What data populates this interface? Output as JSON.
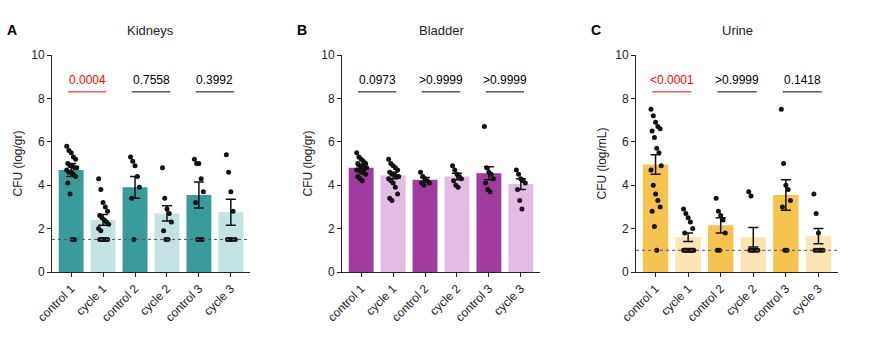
{
  "chart_data": [
    {
      "type": "bar",
      "panel": "A",
      "title": "Kidneys",
      "y_label": "CFU (log/gr)",
      "categories": [
        "control 1",
        "cycle 1",
        "control 2",
        "cycle 2",
        "control 3",
        "cycle 3"
      ],
      "values": [
        4.7,
        2.4,
        3.9,
        2.7,
        3.55,
        2.75
      ],
      "errors": [
        0.3,
        0.25,
        0.5,
        0.35,
        0.6,
        0.6
      ],
      "points": [
        [
          5.8,
          5.6,
          5.5,
          5.3,
          5.2,
          5.0,
          4.9,
          4.9,
          4.8,
          4.8,
          4.7,
          4.6,
          4.6,
          4.5,
          4.4,
          4.1,
          3.6,
          1.5,
          1.5
        ],
        [
          4.3,
          3.8,
          3.2,
          3.0,
          2.8,
          2.6,
          2.5,
          2.4,
          2.3,
          2.2,
          2.0,
          1.9,
          1.5,
          1.5,
          1.5,
          1.5,
          1.5
        ],
        [
          5.3,
          5.1,
          4.9,
          4.4,
          3.9,
          3.4,
          1.5
        ],
        [
          4.8,
          3.4,
          2.9,
          2.7,
          2.3,
          1.9,
          1.5,
          1.5
        ],
        [
          5.2,
          5.0,
          5.0,
          4.3,
          3.7,
          3.2,
          1.5,
          1.5,
          1.5
        ],
        [
          5.4,
          4.6,
          3.7,
          2.8,
          1.5,
          1.5,
          1.5,
          1.5
        ]
      ],
      "colors": [
        "#3a9b9b",
        "#c3e2e4",
        "#3a9b9b",
        "#c3e2e4",
        "#3a9b9b",
        "#c3e2e4"
      ],
      "ylim": [
        0,
        10
      ],
      "yticks": [
        0,
        2,
        4,
        6,
        8,
        10
      ],
      "detection_limit": 1.5,
      "annotations": [
        {
          "text": "0.0004",
          "from": "control 1",
          "to": "cycle 1",
          "color": "#ff0000"
        },
        {
          "text": "0.7558",
          "from": "control 2",
          "to": "cycle 2",
          "color": "#000000"
        },
        {
          "text": "0.3992",
          "from": "control 3",
          "to": "cycle 3",
          "color": "#000000"
        }
      ]
    },
    {
      "type": "bar",
      "panel": "B",
      "title": "Bladder",
      "y_label": "CFU (log/gr)",
      "categories": [
        "control 1",
        "cycle 1",
        "control 2",
        "cycle 2",
        "control 3",
        "cycle 3"
      ],
      "values": [
        4.8,
        4.45,
        4.25,
        4.4,
        4.55,
        4.05
      ],
      "errors": [
        0.1,
        0.15,
        0.1,
        0.15,
        0.3,
        0.25
      ],
      "points": [
        [
          5.5,
          5.3,
          5.2,
          5.1,
          5.0,
          5.0,
          4.9,
          4.9,
          4.8,
          4.8,
          4.7,
          4.7,
          4.6,
          4.6,
          4.5,
          4.4,
          4.3,
          4.2
        ],
        [
          5.2,
          5.0,
          4.9,
          4.8,
          4.7,
          4.6,
          4.5,
          4.5,
          4.4,
          4.4,
          4.3,
          4.2,
          4.1,
          3.9,
          3.6,
          3.4,
          3.3
        ],
        [
          4.6,
          4.4,
          4.3,
          4.2,
          4.1,
          4.1,
          4.0
        ],
        [
          4.9,
          4.7,
          4.5,
          4.4,
          4.3,
          4.2,
          4.0,
          3.9
        ],
        [
          6.7,
          4.8,
          4.6,
          4.5,
          4.3,
          4.1,
          3.8,
          3.7
        ],
        [
          4.7,
          4.5,
          4.3,
          4.2,
          4.1,
          3.8,
          3.3,
          2.9
        ]
      ],
      "colors": [
        "#a13c9e",
        "#e2bce2",
        "#a13c9e",
        "#e2bce2",
        "#a13c9e",
        "#e2bce2"
      ],
      "ylim": [
        0,
        10
      ],
      "yticks": [
        0,
        2,
        4,
        6,
        8,
        10
      ],
      "annotations": [
        {
          "text": "0.0973",
          "from": "control 1",
          "to": "cycle 1",
          "color": "#000000"
        },
        {
          "text": ">0.9999",
          "from": "control 2",
          "to": "cycle 2",
          "color": "#000000"
        },
        {
          "text": ">0.9999",
          "from": "control 3",
          "to": "cycle 3",
          "color": "#000000"
        }
      ]
    },
    {
      "type": "bar",
      "panel": "C",
      "title": "Urine",
      "y_label": "CFU (log/mL)",
      "categories": [
        "control 1",
        "cycle 1",
        "control 2",
        "cycle 2",
        "control 3",
        "cycle 3"
      ],
      "values": [
        4.95,
        1.6,
        2.15,
        1.6,
        3.55,
        1.65
      ],
      "errors": [
        0.45,
        0.2,
        0.35,
        0.45,
        0.7,
        0.35
      ],
      "points": [
        [
          7.5,
          7.2,
          6.9,
          6.7,
          6.6,
          6.5,
          6.2,
          5.7,
          5.5,
          4.9,
          4.7,
          4.0,
          3.6,
          3.3,
          3.0,
          2.8,
          2.1,
          1.0
        ],
        [
          2.9,
          2.7,
          2.5,
          2.3,
          2.0,
          1.8,
          1.0,
          1.0,
          1.0,
          1.0,
          1.0,
          1.0,
          1.0,
          1.0,
          1.0,
          1.0
        ],
        [
          3.4,
          2.8,
          2.6,
          2.4,
          1.8,
          1.0,
          1.0
        ],
        [
          3.7,
          3.5,
          1.0,
          1.0,
          1.0,
          1.0,
          1.0
        ],
        [
          7.5,
          5.0,
          4.0,
          3.8,
          3.3,
          3.0,
          1.0,
          1.0
        ],
        [
          3.6,
          2.7,
          1.8,
          1.0,
          1.0,
          1.0,
          1.0,
          1.0
        ]
      ],
      "colors": [
        "#f7c34f",
        "#fce4b3",
        "#f7c34f",
        "#fce4b3",
        "#f7c34f",
        "#fce4b3"
      ],
      "ylim": [
        0,
        10
      ],
      "yticks": [
        0,
        2,
        4,
        6,
        8,
        10
      ],
      "detection_limit": 1.0,
      "annotations": [
        {
          "text": "<0.0001",
          "from": "control 1",
          "to": "cycle 1",
          "color": "#ff0000"
        },
        {
          "text": ">0.9999",
          "from": "control 2",
          "to": "cycle 2",
          "color": "#000000"
        },
        {
          "text": "0.1418",
          "from": "control 3",
          "to": "cycle 3",
          "color": "#000000"
        }
      ]
    }
  ]
}
